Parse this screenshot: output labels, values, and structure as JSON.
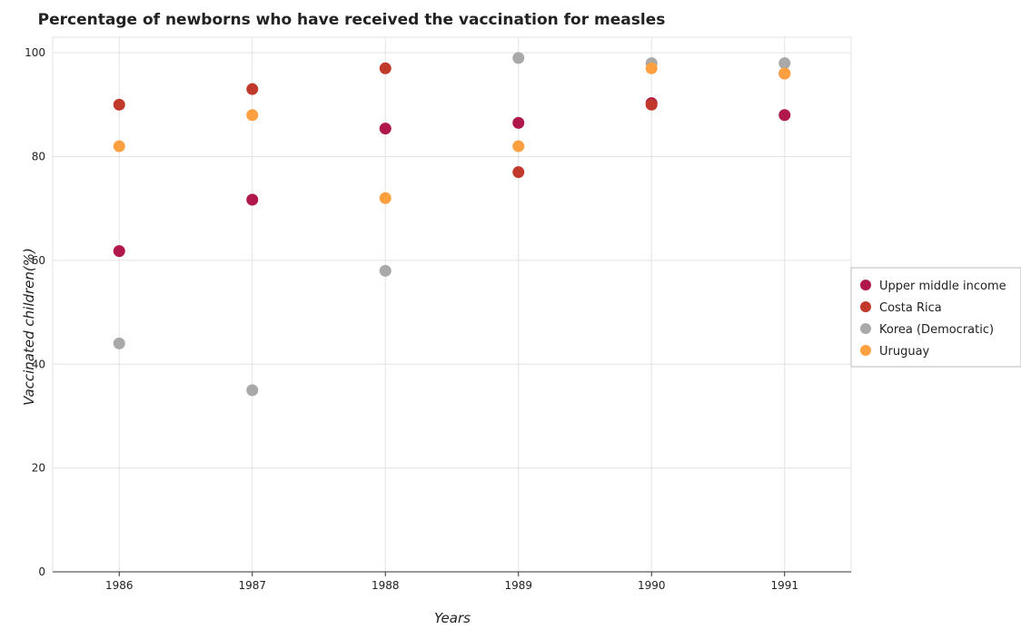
{
  "chart_data": {
    "type": "scatter",
    "title": "Percentage of newborns who have received the vaccination for measles",
    "xlabel": "Years",
    "ylabel": "Vaccinated children(%)",
    "categories": [
      "1986",
      "1987",
      "1988",
      "1989",
      "1990",
      "1991"
    ],
    "yticks": [
      "0",
      "20",
      "40",
      "60",
      "80",
      "100"
    ],
    "ylim": [
      0,
      103
    ],
    "grid": true,
    "legend_position": "right",
    "series": [
      {
        "name": "Upper middle income",
        "color": "#b0174a",
        "values": [
          61.8,
          71.7,
          85.4,
          86.5,
          90.3,
          88.0
        ]
      },
      {
        "name": "Costa Rica",
        "color": "#c0392b",
        "values": [
          90,
          93,
          97,
          77,
          90,
          96
        ]
      },
      {
        "name": "Korea (Democratic)",
        "color": "#a9a9a9",
        "values": [
          44,
          35,
          58,
          99,
          98,
          98
        ]
      },
      {
        "name": "Uruguay",
        "color": "#ffa040",
        "values": [
          82,
          88,
          72,
          82,
          97,
          96
        ]
      }
    ]
  }
}
